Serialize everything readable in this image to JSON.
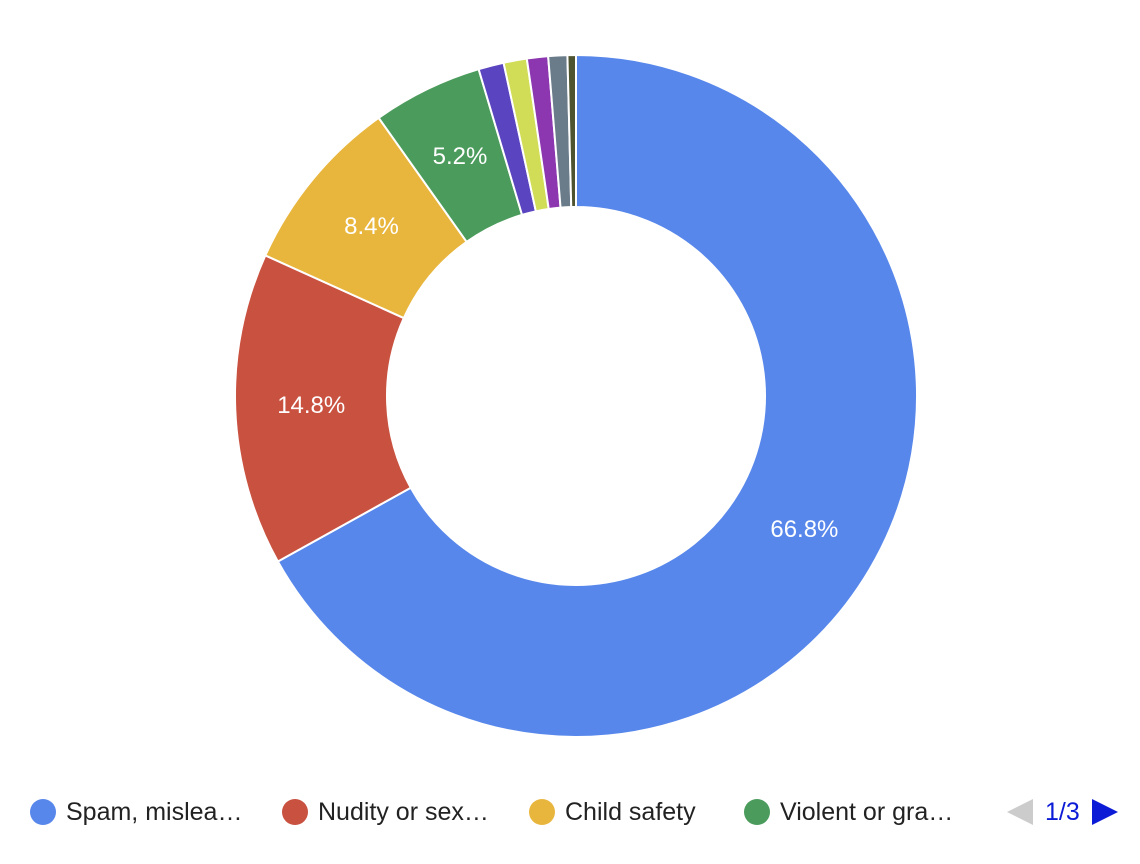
{
  "chart_data": {
    "type": "pie",
    "donut": true,
    "slices": [
      {
        "name": "Spam, mislea…",
        "value": 66.8,
        "label": "66.8%",
        "color": "#5787eb"
      },
      {
        "name": "Nudity or sex…",
        "value": 14.8,
        "label": "14.8%",
        "color": "#c95140"
      },
      {
        "name": "Child safety",
        "value": 8.4,
        "label": "8.4%",
        "color": "#e9b63d"
      },
      {
        "name": "Violent or gra…",
        "value": 5.2,
        "label": "5.2%",
        "color": "#4b9b5c"
      },
      {
        "value": 1.2,
        "label": "",
        "color": "#5b44bf"
      },
      {
        "value": 1.1,
        "label": "",
        "color": "#d2dd57"
      },
      {
        "value": 1.0,
        "label": "",
        "color": "#8c36b0"
      },
      {
        "value": 0.9,
        "label": "",
        "color": "#6a7b8a"
      },
      {
        "value": 0.4,
        "label": "",
        "color": "#4e5430"
      }
    ],
    "legend_position": "bottom"
  },
  "legend": {
    "items": [
      {
        "label": "Spam, mislea…",
        "color": "#5787eb"
      },
      {
        "label": "Nudity or sex…",
        "color": "#c95140"
      },
      {
        "label": "Child safety",
        "color": "#e9b63d"
      },
      {
        "label": "Violent or gra…",
        "color": "#4b9b5c"
      }
    ],
    "page": "1/3",
    "prev_icon": "triangle-left",
    "next_icon": "triangle-right"
  }
}
